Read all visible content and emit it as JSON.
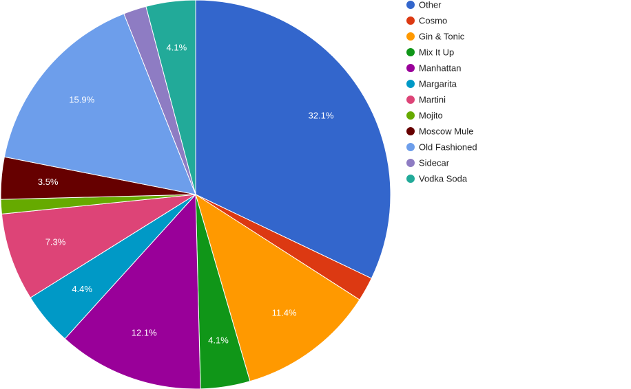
{
  "chart_data": {
    "type": "pie",
    "title": "",
    "legend_position": "right",
    "start_angle_deg": 0,
    "direction": "clockwise",
    "slices": [
      {
        "label": "Other",
        "value": 32.1,
        "color": "#3366cc",
        "value_label": "32.1%"
      },
      {
        "label": "Cosmo",
        "value": 2.0,
        "color": "#dc3912",
        "value_label": ""
      },
      {
        "label": "Gin & Tonic",
        "value": 11.4,
        "color": "#ff9900",
        "value_label": "11.4%"
      },
      {
        "label": "Mix It Up",
        "value": 4.1,
        "color": "#109618",
        "value_label": "4.1%"
      },
      {
        "label": "Manhattan",
        "value": 12.1,
        "color": "#990099",
        "value_label": "12.1%"
      },
      {
        "label": "Margarita",
        "value": 4.4,
        "color": "#0099c6",
        "value_label": "4.4%"
      },
      {
        "label": "Martini",
        "value": 7.3,
        "color": "#dd4477",
        "value_label": "7.3%"
      },
      {
        "label": "Mojito",
        "value": 1.2,
        "color": "#66aa00",
        "value_label": ""
      },
      {
        "label": "Moscow Mule",
        "value": 3.5,
        "color": "#660000",
        "value_label": "3.5%"
      },
      {
        "label": "Old Fashioned",
        "value": 15.9,
        "color": "#6d9eeb",
        "value_label": "15.9%"
      },
      {
        "label": "Sidecar",
        "value": 1.9,
        "color": "#8e7cc3",
        "value_label": ""
      },
      {
        "label": "Vodka Soda",
        "value": 4.1,
        "color": "#22aa99",
        "value_label": "4.1%"
      }
    ]
  }
}
